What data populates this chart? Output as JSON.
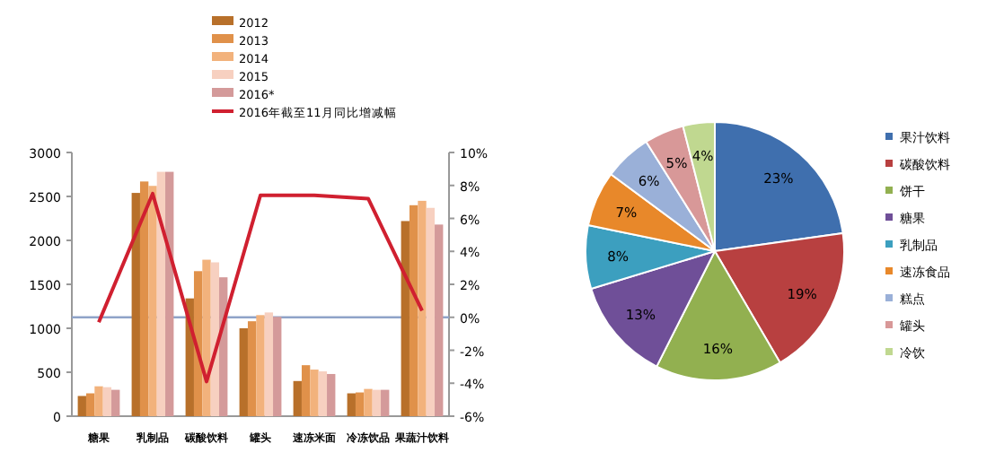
{
  "chart_data": [
    {
      "type": "bar",
      "categories": [
        "糖果",
        "乳制品",
        "碳酸饮料",
        "罐头",
        "速冻米面",
        "冷冻饮品",
        "果蔬汁饮料"
      ],
      "series": [
        {
          "name": "2012",
          "color": "#b8702a",
          "values": [
            230,
            2540,
            1340,
            1000,
            400,
            260,
            2220
          ]
        },
        {
          "name": "2013",
          "color": "#e0914a",
          "values": [
            260,
            2670,
            1650,
            1080,
            580,
            270,
            2400
          ]
        },
        {
          "name": "2014",
          "color": "#f2b27c",
          "values": [
            340,
            2620,
            1780,
            1150,
            530,
            310,
            2450
          ]
        },
        {
          "name": "2015",
          "color": "#f7d0c0",
          "values": [
            330,
            2780,
            1750,
            1180,
            510,
            300,
            2370
          ]
        },
        {
          "name": "2016*",
          "color": "#d49a9a",
          "values": [
            300,
            2780,
            1580,
            1130,
            480,
            300,
            2180
          ]
        },
        {
          "name": "2016年截至11月同比增减幅",
          "type": "line",
          "axis": "y2",
          "color": "#d02030",
          "values": [
            -0.3,
            7.5,
            -3.9,
            7.4,
            7.4,
            7.2,
            0.4
          ]
        }
      ],
      "ylim": [
        0,
        3000
      ],
      "yticks": [
        0,
        500,
        1000,
        1500,
        2000,
        2500,
        3000
      ],
      "y2lim": [
        -6,
        10
      ],
      "y2ticks": [
        {
          "value": -6,
          "label": "-6%"
        },
        {
          "value": -4,
          "label": "-4%"
        },
        {
          "value": -2,
          "label": "-2%"
        },
        {
          "value": 0,
          "label": "0%"
        },
        {
          "value": 2,
          "label": "2%"
        },
        {
          "value": 4,
          "label": "4%"
        },
        {
          "value": 6,
          "label": "6%"
        },
        {
          "value": 8,
          "label": "8%"
        },
        {
          "value": 10,
          "label": "10%"
        }
      ],
      "ref_lines": [
        {
          "axis": "y2",
          "value": 0,
          "color": "#8fa3c8"
        }
      ],
      "legend": "top",
      "grid": false
    },
    {
      "type": "pie",
      "categories": [
        "果汁饮料",
        "碳酸饮料",
        "饼干",
        "糖果",
        "乳制品",
        "速冻食品",
        "糕点",
        "罐头",
        "冷饮"
      ],
      "values": [
        23,
        19,
        16,
        13,
        8,
        7,
        6,
        5,
        4
      ],
      "colors": [
        "#3f6fae",
        "#b84040",
        "#92b050",
        "#6f4f98",
        "#3c9fbf",
        "#e8882a",
        "#9ab0d8",
        "#d89898",
        "#c0d890"
      ],
      "value_labels": [
        "23%",
        "19%",
        "16%",
        "13%",
        "8%",
        "7%",
        "6%",
        "5%",
        "4%"
      ],
      "legend": "right"
    }
  ]
}
